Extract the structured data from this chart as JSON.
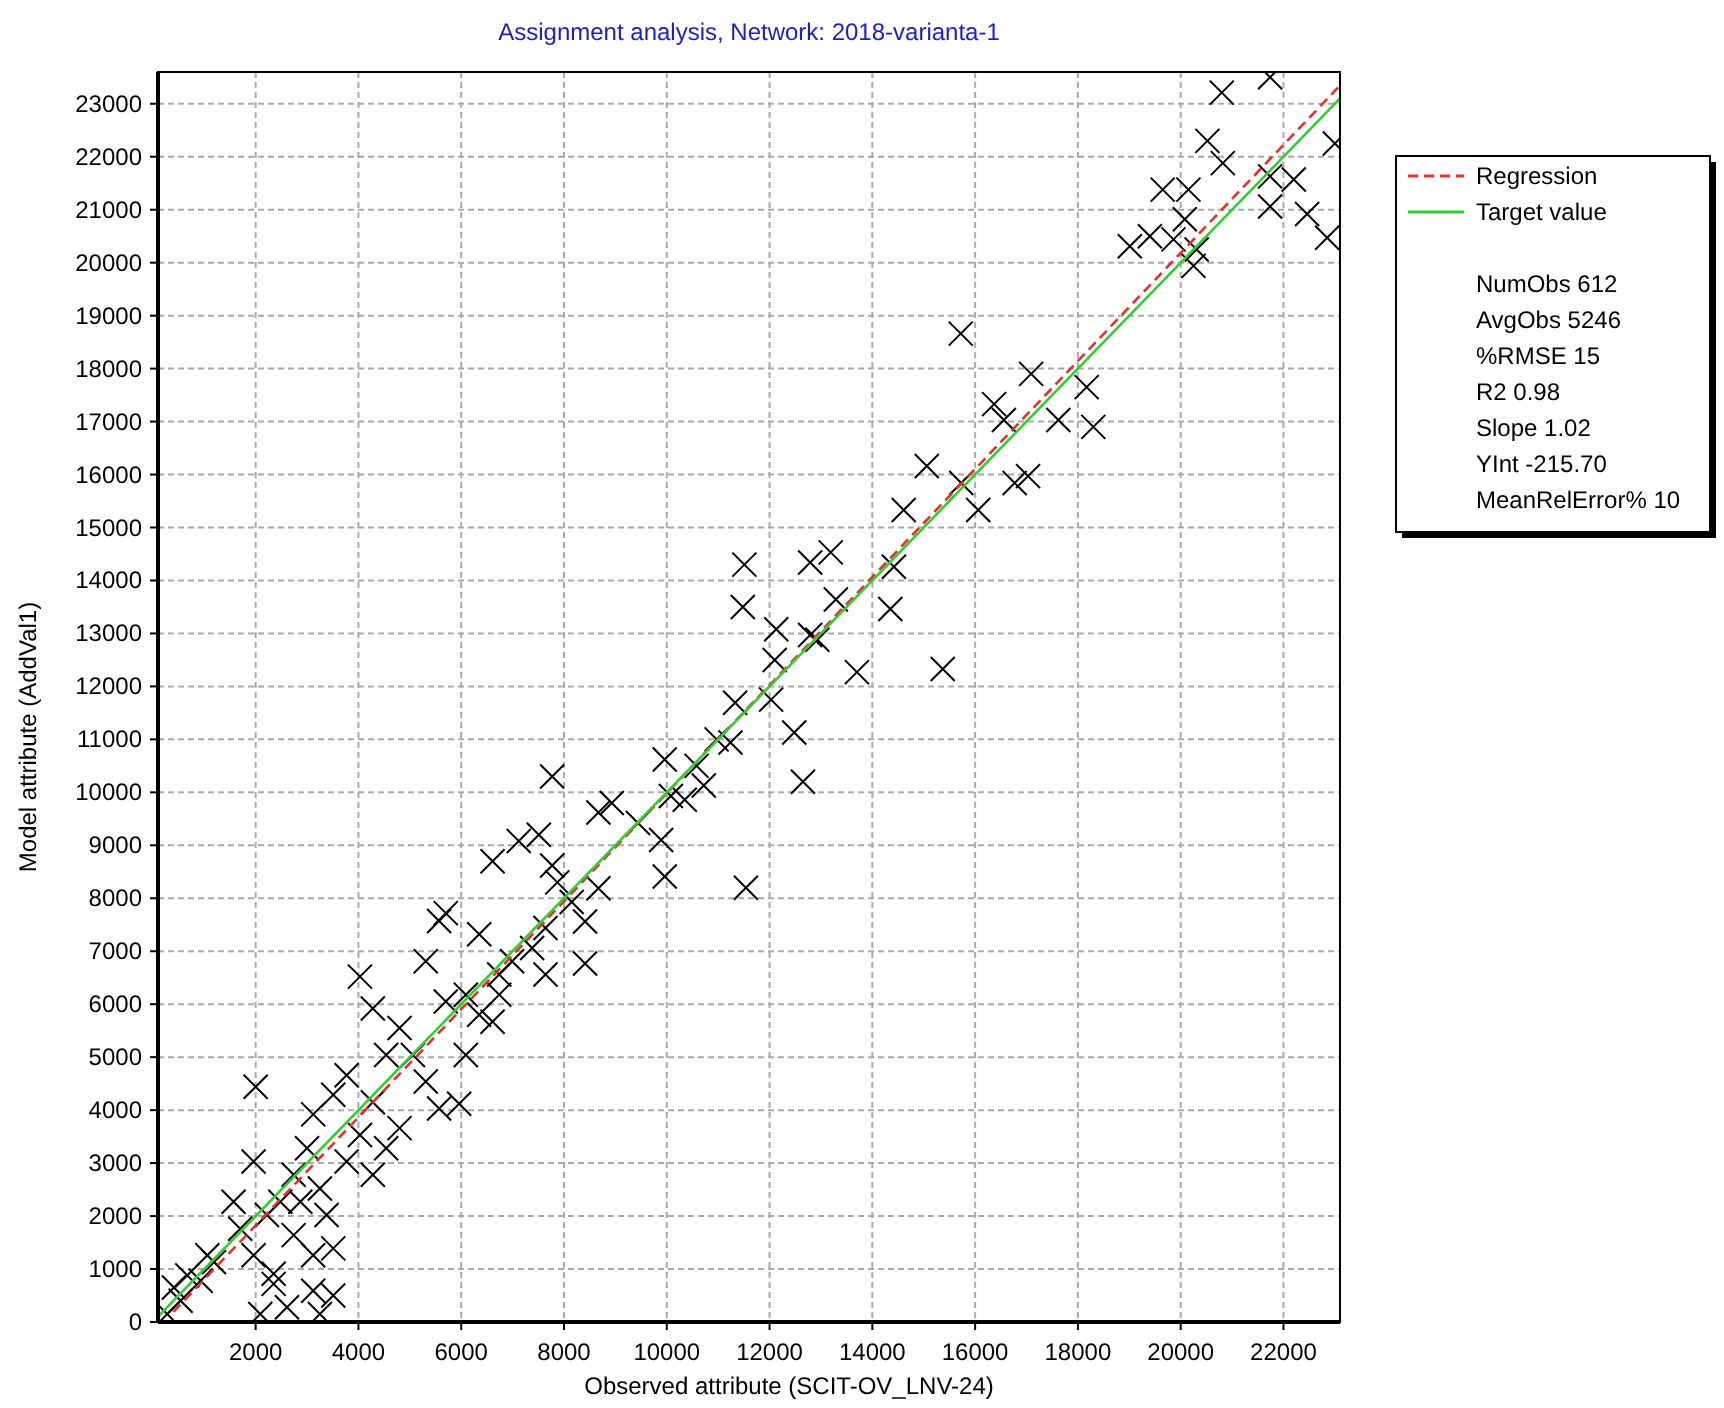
{
  "chart_data": {
    "type": "scatter",
    "title": "Assignment analysis, Network: 2018-varianta-1",
    "xlabel": "Observed attribute (SCIT-OV_LNV-24)",
    "ylabel": "Model attribute (AddVal1)",
    "xlim": [
      100,
      23100
    ],
    "ylim": [
      0,
      23600
    ],
    "xticks": [
      2000,
      4000,
      6000,
      8000,
      10000,
      12000,
      14000,
      16000,
      18000,
      20000,
      22000
    ],
    "yticks": [
      0,
      1000,
      2000,
      3000,
      4000,
      5000,
      6000,
      7000,
      8000,
      9000,
      10000,
      11000,
      12000,
      13000,
      14000,
      15000,
      16000,
      17000,
      18000,
      19000,
      20000,
      21000,
      22000,
      23000
    ],
    "grid": true,
    "legend": "right",
    "series": [
      {
        "marker": "cross",
        "color": "#000000",
        "x": [
          20800,
          21740,
          20520,
          20820,
          19650,
          20150,
          19010,
          19400,
          19860,
          20080,
          20310,
          20250,
          21740,
          22200,
          21740,
          22460,
          22850,
          23000,
          15720,
          17090,
          16370,
          18170,
          16560,
          17620,
          18300,
          17030,
          16770,
          15060,
          15730,
          16060,
          14610,
          14420,
          12790,
          14350,
          15370,
          13700,
          12790,
          11510,
          11480,
          12130,
          12100,
          12930,
          13290,
          13190,
          11330,
          2000,
          4030,
          7770,
          11540,
          12480,
          12650,
          12030,
          5960,
          8410,
          3120,
          3510,
          2350,
          2090,
          5700,
          8930,
          9440,
          9960,
          9890,
          10080,
          10720,
          11240,
          10970,
          9960,
          10350,
          7120,
          7510,
          6610,
          7770,
          8150,
          8670,
          8410,
          7640,
          6990,
          6350,
          5570,
          5310,
          6090,
          6740,
          7640,
          6610,
          5700,
          4800,
          4540,
          4280,
          4280,
          5310,
          5570,
          3770,
          3510,
          4030,
          4540,
          3000,
          2740,
          3250,
          3770,
          4280,
          2480,
          2220,
          1700,
          1190,
          930,
          540,
          280,
          1960,
          2740,
          3120,
          3380,
          2350,
          1570,
          1960,
          1060,
          670,
          3510,
          3120,
          2870,
          4800,
          5060,
          6090,
          6740,
          6350,
          10580,
          8670,
          7870,
          7380,
          2610,
          3250,
          410
        ],
        "values": [
          23210,
          23500,
          22300,
          21880,
          21380,
          21380,
          20310,
          20500,
          20440,
          20820,
          20250,
          19940,
          21630,
          21570,
          21060,
          20920,
          20470,
          22250,
          18660,
          17900,
          17330,
          17650,
          17030,
          17030,
          16900,
          15970,
          15840,
          16160,
          15840,
          15330,
          15330,
          14260,
          14340,
          13460,
          12330,
          12270,
          12970,
          14300,
          13500,
          13080,
          12500,
          12880,
          13640,
          14530,
          11690,
          4440,
          6520,
          10300,
          8200,
          11130,
          10200,
          11750,
          4120,
          6770,
          590,
          500,
          720,
          150,
          7720,
          9800,
          9420,
          8410,
          9100,
          9930,
          10130,
          10940,
          11000,
          10620,
          9860,
          9080,
          9200,
          8700,
          8620,
          7930,
          8190,
          7560,
          7440,
          6810,
          7320,
          7570,
          6810,
          6180,
          6180,
          6560,
          5670,
          6050,
          5550,
          5040,
          5920,
          4150,
          4540,
          4030,
          4660,
          4290,
          3530,
          3280,
          3280,
          2780,
          2520,
          3030,
          2780,
          2270,
          2020,
          1760,
          1130,
          780,
          400,
          150,
          1260,
          1640,
          1260,
          2020,
          910,
          2270,
          3030,
          1260,
          880,
          1390,
          3920,
          2270,
          3660,
          5040,
          5040,
          6560,
          5800,
          10500,
          9620,
          8300,
          7060,
          280,
          150,
          650
        ]
      },
      {
        "type": "line",
        "name": "Regression",
        "color": "#e03030",
        "line_style": "dashed",
        "marker": "none",
        "x": [
          400,
          23100
        ],
        "values": [
          192,
          23346
        ]
      },
      {
        "type": "line",
        "name": "Target value",
        "color": "#33cc33",
        "line_style": "solid",
        "marker": "none",
        "x": [
          100,
          23100
        ],
        "values": [
          100,
          23100
        ]
      }
    ],
    "annotations": [
      "NumObs 612",
      "AvgObs 5246",
      "%RMSE 15",
      "R2 0.98",
      "Slope 1.02",
      "YInt -215.70",
      "MeanRelError% 10"
    ]
  }
}
